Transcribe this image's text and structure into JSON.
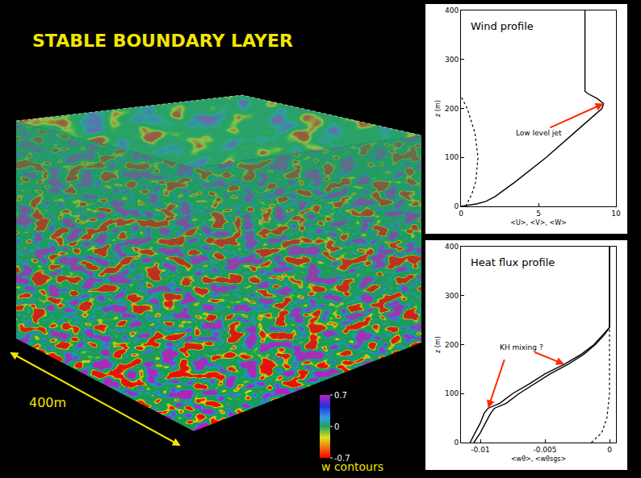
{
  "header": {
    "title": "STABLE BOUNDARY LAYER"
  },
  "volume": {
    "scale_label": "400m",
    "colorbar": {
      "label": "w contours",
      "range": [
        -0.7,
        0.7
      ],
      "ticks": [
        -0.7,
        0,
        0.7
      ]
    }
  },
  "chart_data": [
    {
      "type": "line",
      "title": "Wind profile",
      "xlabel": "<U>, <V>, <W>",
      "ylabel": "z (m)",
      "xlim": [
        0,
        10
      ],
      "xticks": [
        0,
        5,
        10
      ],
      "ylim": [
        0,
        400
      ],
      "yticks": [
        0,
        100,
        200,
        300,
        400
      ],
      "grid": false,
      "annotations": [
        "Low level jet"
      ],
      "series": [
        {
          "color": "#000000",
          "line_style": "solid",
          "x": [
            0,
            1,
            1.6,
            2.2,
            3.5,
            5.5,
            7.3,
            8.4,
            9.1,
            9.2,
            8.8,
            8.2,
            8,
            8
          ],
          "y": [
            0,
            5,
            10,
            20,
            50,
            100,
            150,
            180,
            200,
            210,
            220,
            230,
            235,
            400
          ]
        },
        {
          "color": "#000000",
          "line_style": "dotted",
          "x": [
            0.3,
            0.7,
            0.95,
            1.1,
            0.9,
            0.4,
            0
          ],
          "y": [
            0,
            25,
            50,
            100,
            150,
            200,
            225
          ]
        }
      ]
    },
    {
      "type": "line",
      "title": "Heat flux profile",
      "xlabel": "<wθ>, <wθsgs>",
      "ylabel": "z (m)",
      "xlim": [
        -0.0115,
        0.0005
      ],
      "xticks": [
        -0.01,
        -0.005,
        0
      ],
      "ylim": [
        0,
        400
      ],
      "yticks": [
        0,
        100,
        200,
        300,
        400
      ],
      "grid": false,
      "annotations": [
        "KH mixing ?"
      ],
      "series": [
        {
          "color": "#000000",
          "line_style": "solid",
          "x": [
            -0.0108,
            -0.0104,
            -0.01,
            -0.0097,
            -0.0094,
            -0.0085,
            -0.0075,
            -0.0062,
            -0.005,
            -0.0035,
            -0.0022,
            -0.0012,
            -0.0005,
            0,
            0
          ],
          "y": [
            0,
            20,
            40,
            60,
            70,
            80,
            100,
            120,
            140,
            160,
            180,
            200,
            220,
            235,
            400
          ]
        },
        {
          "color": "#000000",
          "line_style": "solid",
          "x": [
            -0.0105,
            -0.01,
            -0.0096,
            -0.0092,
            -0.0089,
            -0.008,
            -0.007,
            -0.0058,
            -0.0046,
            -0.0032,
            -0.002,
            -0.0011,
            -0.0004,
            0,
            0
          ],
          "y": [
            0,
            20,
            40,
            60,
            70,
            80,
            100,
            120,
            140,
            160,
            180,
            200,
            220,
            235,
            400
          ]
        },
        {
          "color": "#000000",
          "line_style": "dotted",
          "x": [
            -0.0014,
            -0.0006,
            -0.0002,
            0,
            0
          ],
          "y": [
            0,
            20,
            50,
            100,
            400
          ]
        }
      ]
    }
  ]
}
